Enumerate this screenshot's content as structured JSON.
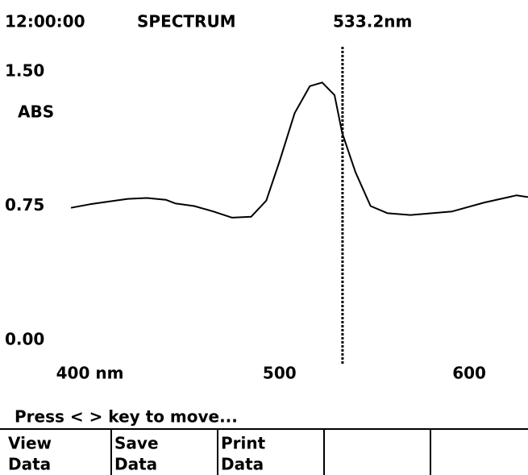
{
  "header": {
    "time": "12:00:00",
    "mode": "SPECTRUM",
    "wavelength": "533.2nm"
  },
  "chart_data": {
    "type": "line",
    "y_label": "ABS",
    "x": [
      390,
      400,
      410,
      420,
      430,
      440,
      445,
      455,
      465,
      475,
      485,
      493,
      500,
      508,
      516,
      522.5,
      529,
      533,
      540,
      548,
      557,
      569,
      591,
      608,
      625,
      631
    ],
    "values": [
      0.74,
      0.76,
      0.775,
      0.79,
      0.795,
      0.785,
      0.765,
      0.75,
      0.72,
      0.685,
      0.69,
      0.78,
      1.0,
      1.27,
      1.42,
      1.44,
      1.37,
      1.16,
      0.94,
      0.75,
      0.71,
      0.7,
      0.72,
      0.77,
      0.81,
      0.8
    ],
    "color": "#000000",
    "xlim": [
      390,
      631
    ],
    "xticks": [
      {
        "value": 400,
        "label": "400 nm"
      },
      500,
      600
    ],
    "ylim": [
      0,
      1.5
    ],
    "yticks": [
      {
        "value": 0,
        "label": "0.00"
      },
      {
        "value": 0.75,
        "label": "0.75"
      },
      {
        "value": 1.5,
        "label": "1.50"
      }
    ],
    "cursor": 533.2
  },
  "status": "Press < > key to move...",
  "softkeys": [
    [
      "View",
      "Data"
    ],
    [
      "Save",
      "Data"
    ],
    [
      "Print",
      "Data"
    ],
    [],
    []
  ]
}
